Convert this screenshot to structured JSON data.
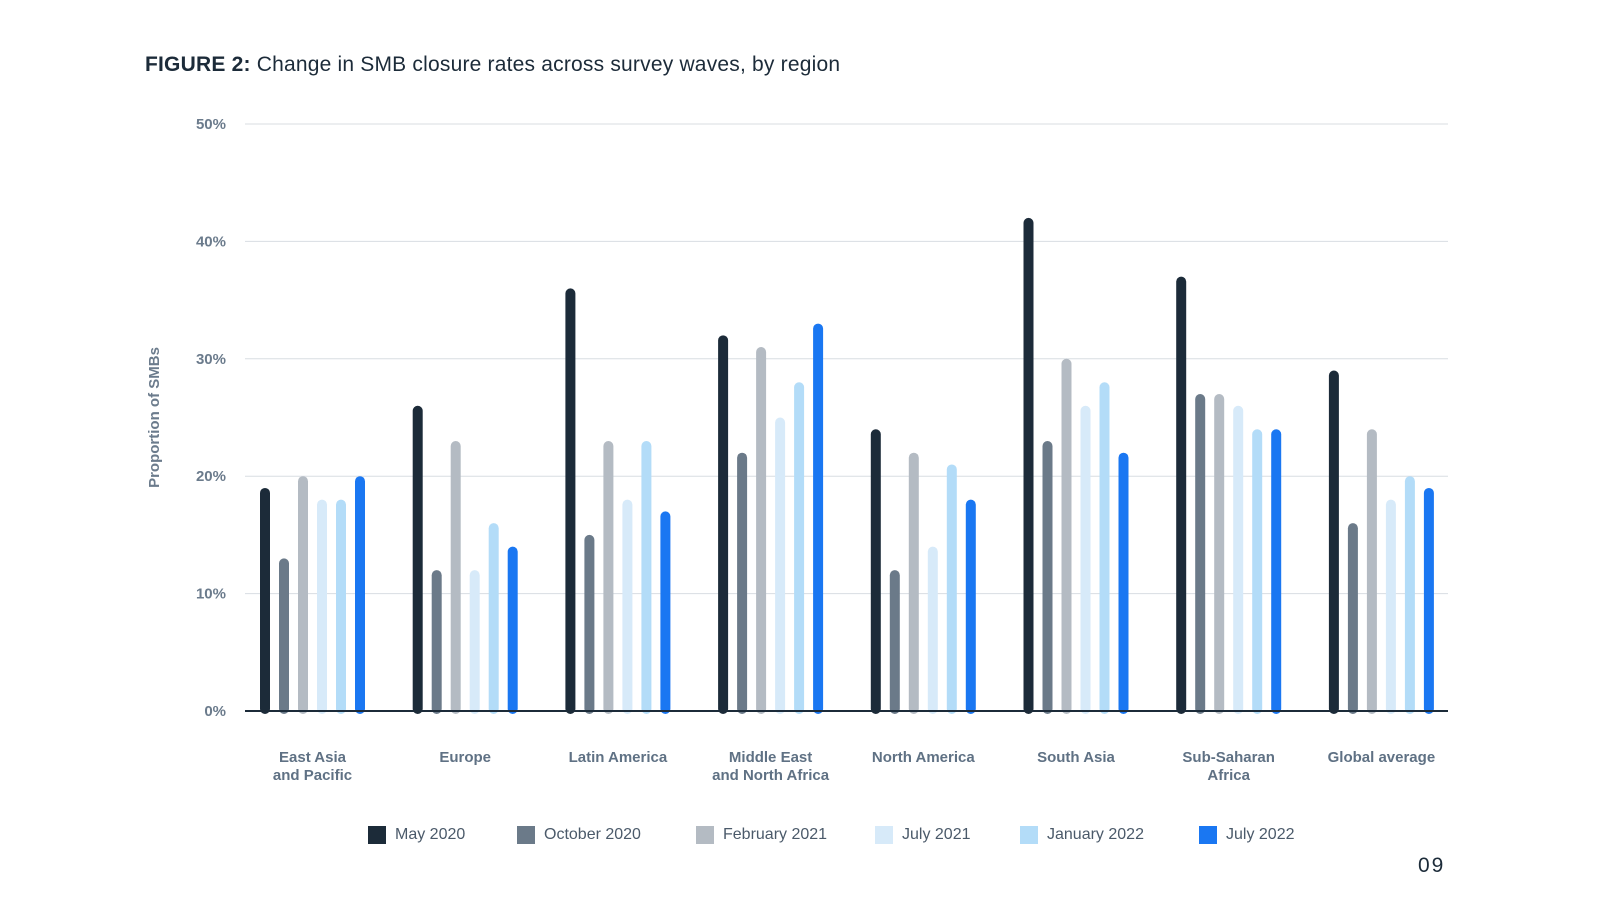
{
  "figure": {
    "prefix": "FIGURE 2:",
    "text": "Change in SMB closure rates across survey waves, by region"
  },
  "page_number": "09",
  "chart_data": {
    "type": "bar",
    "ylabel": "Proportion of SMBs",
    "xlabel": "",
    "ylim": [
      0,
      50
    ],
    "yticks": [
      "0%",
      "10%",
      "20%",
      "30%",
      "40%",
      "50%"
    ],
    "grid": true,
    "legend_position": "bottom",
    "categories": [
      [
        "East Asia",
        "and Pacific"
      ],
      [
        "Europe"
      ],
      [
        "Latin America"
      ],
      [
        "Middle East",
        "and North Africa"
      ],
      [
        "North America"
      ],
      [
        "South Asia"
      ],
      [
        "Sub-Saharan",
        "Africa"
      ],
      [
        "Global average"
      ]
    ],
    "series": [
      {
        "name": "May 2020",
        "color": "#1c2b39",
        "values": [
          19,
          26,
          36,
          32,
          24,
          42,
          37,
          29
        ]
      },
      {
        "name": "October 2020",
        "color": "#6b7a89",
        "values": [
          13,
          12,
          15,
          22,
          12,
          23,
          27,
          16
        ]
      },
      {
        "name": "February 2021",
        "color": "#b4bbc3",
        "values": [
          20,
          23,
          23,
          31,
          22,
          30,
          27,
          24
        ]
      },
      {
        "name": "July 2021",
        "color": "#d7eaf9",
        "values": [
          18,
          12,
          18,
          25,
          14,
          26,
          26,
          18
        ]
      },
      {
        "name": "January 2022",
        "color": "#b3dcf8",
        "values": [
          18,
          16,
          23,
          28,
          21,
          28,
          24,
          20
        ]
      },
      {
        "name": "July 2022",
        "color": "#1a77f2",
        "values": [
          20,
          14,
          17,
          33,
          18,
          22,
          24,
          19
        ]
      }
    ]
  }
}
